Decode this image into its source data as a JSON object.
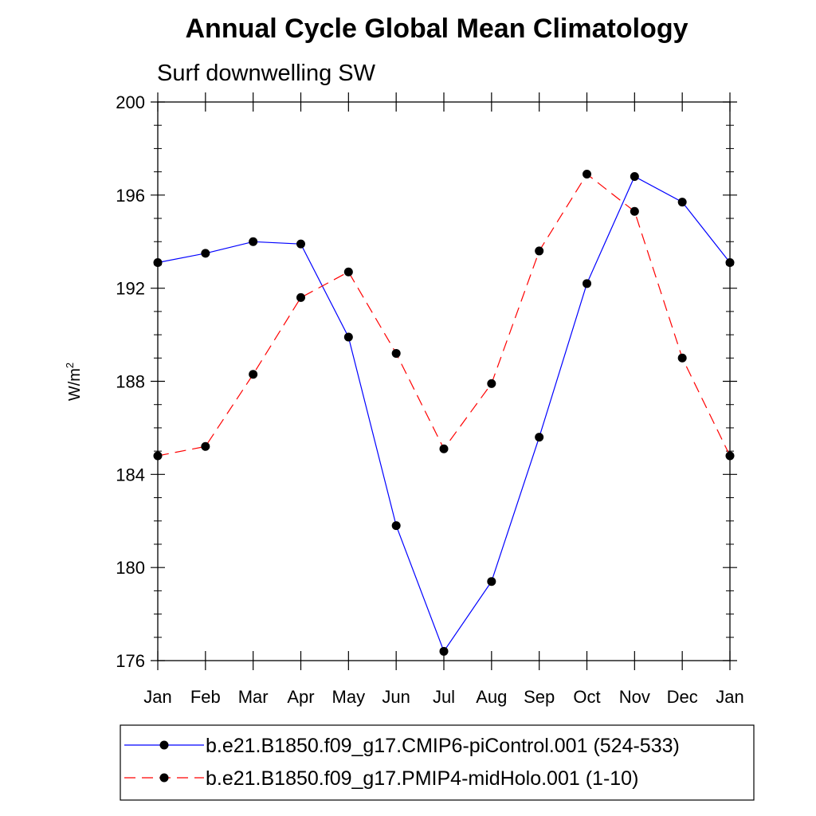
{
  "chart_data": {
    "type": "line",
    "title": "Annual Cycle Global Mean Climatology",
    "subtitle": "Surf downwelling SW",
    "ylabel_base": "W/m",
    "ylabel_sup": "2",
    "categories": [
      "Jan",
      "Feb",
      "Mar",
      "Apr",
      "May",
      "Jun",
      "Jul",
      "Aug",
      "Sep",
      "Oct",
      "Nov",
      "Dec",
      "Jan"
    ],
    "ylim": [
      176,
      200
    ],
    "yticks": [
      "176",
      "180",
      "184",
      "188",
      "192",
      "196",
      "200"
    ],
    "series": [
      {
        "name": "b.e21.B1850.f09_g17.CMIP6-piControl.001 (524-533)",
        "color": "#0000ff",
        "dash": "solid",
        "values": [
          193.1,
          193.5,
          194.0,
          193.9,
          189.9,
          181.8,
          176.4,
          179.4,
          185.6,
          192.2,
          196.8,
          195.7,
          193.1
        ]
      },
      {
        "name": "b.e21.B1850.f09_g17.PMIP4-midHolo.001 (1-10)",
        "color": "#ff0000",
        "dash": "dashed",
        "values": [
          184.8,
          185.2,
          188.3,
          191.6,
          192.7,
          189.2,
          185.1,
          187.9,
          193.6,
          196.9,
          195.3,
          189.0,
          184.8
        ]
      }
    ]
  }
}
